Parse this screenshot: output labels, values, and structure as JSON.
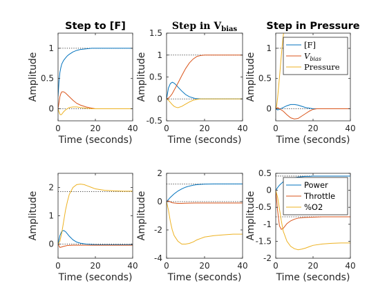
{
  "colors": {
    "F": "#0072BD",
    "Vbias": "#D95319",
    "Pressure": "#EDB120",
    "axis": "#262626",
    "ref": "#000000"
  },
  "chart_data": [
    {
      "type": "line",
      "row": 1,
      "col": 1,
      "title": "Step to [F]",
      "title_style": "sans",
      "xlabel": "Time (seconds)",
      "ylabel": "Amplitude",
      "xlim": [
        0,
        40
      ],
      "ylim": [
        -0.2,
        1.25
      ],
      "xticks": [
        "0",
        "20",
        "40"
      ],
      "xtick_values": [
        0,
        20,
        40
      ],
      "yticks": [
        "0",
        "0.5",
        "1"
      ],
      "ytick_values": [
        0,
        0.5,
        1
      ],
      "reference_lines": [
        0,
        1
      ],
      "series": [
        {
          "key": "F",
          "x": [
            0,
            0.5,
            1,
            1.5,
            2,
            3,
            4,
            5,
            6,
            8,
            10,
            12,
            15,
            18,
            20,
            25,
            30,
            35,
            40
          ],
          "y": [
            0.2,
            0.45,
            0.6,
            0.68,
            0.74,
            0.8,
            0.84,
            0.875,
            0.9,
            0.94,
            0.965,
            0.98,
            0.99,
            1.0,
            1.0,
            1.0,
            1.0,
            1.0,
            1.0
          ]
        },
        {
          "key": "Vbias",
          "x": [
            0,
            0.5,
            1,
            1.5,
            2,
            3,
            4,
            5,
            6,
            8,
            10,
            12,
            15,
            18,
            20,
            25,
            30,
            35,
            40
          ],
          "y": [
            0,
            0.1,
            0.2,
            0.25,
            0.28,
            0.28,
            0.26,
            0.23,
            0.2,
            0.14,
            0.09,
            0.06,
            0.03,
            0.01,
            0.0,
            0.0,
            0.0,
            0.0,
            0.0
          ]
        },
        {
          "key": "Pressure",
          "x": [
            0,
            0.5,
            1,
            1.5,
            2,
            3,
            4,
            5,
            6,
            8,
            10,
            12,
            15,
            18,
            20,
            25,
            30,
            35,
            40
          ],
          "y": [
            0,
            -0.05,
            -0.09,
            -0.1,
            -0.09,
            -0.05,
            -0.02,
            0.0,
            0.02,
            0.03,
            0.03,
            0.02,
            0.01,
            0.0,
            0.0,
            0.0,
            0.0,
            0.0,
            0.0
          ]
        }
      ]
    },
    {
      "type": "line",
      "row": 1,
      "col": 2,
      "title": "Step in V",
      "title_subscript": "bias",
      "title_style": "serif",
      "xlabel": "Time (seconds)",
      "ylabel": "Amplitude",
      "xlim": [
        0,
        40
      ],
      "ylim": [
        -0.5,
        1.5
      ],
      "xticks": [
        "0",
        "20",
        "40"
      ],
      "xtick_values": [
        0,
        20,
        40
      ],
      "yticks": [
        "-0.5",
        "0",
        "0.5",
        "1",
        "1.5"
      ],
      "ytick_values": [
        -0.5,
        0,
        0.5,
        1,
        1.5
      ],
      "reference_lines": [
        0,
        1
      ],
      "series": [
        {
          "key": "F",
          "x": [
            0,
            1,
            2,
            3,
            4,
            5,
            6,
            8,
            10,
            12,
            15,
            18,
            20,
            25,
            30,
            35,
            40
          ],
          "y": [
            0,
            0.25,
            0.35,
            0.38,
            0.36,
            0.32,
            0.27,
            0.18,
            0.1,
            0.05,
            0.01,
            0.0,
            0.0,
            0.0,
            0.0,
            0.0,
            0.0
          ]
        },
        {
          "key": "Vbias",
          "x": [
            0,
            1,
            2,
            3,
            4,
            5,
            6,
            8,
            10,
            12,
            14,
            16,
            18,
            20,
            22,
            25,
            30,
            35,
            40
          ],
          "y": [
            0,
            0.02,
            0.06,
            0.12,
            0.2,
            0.28,
            0.36,
            0.53,
            0.69,
            0.82,
            0.91,
            0.97,
            0.99,
            1.0,
            1.0,
            1.0,
            1.0,
            1.0,
            1.0
          ]
        },
        {
          "key": "Pressure",
          "x": [
            0,
            1,
            2,
            3,
            4,
            5,
            6,
            8,
            10,
            12,
            14,
            16,
            18,
            20,
            25,
            30,
            35,
            40
          ],
          "y": [
            0,
            -0.03,
            -0.08,
            -0.13,
            -0.17,
            -0.19,
            -0.2,
            -0.17,
            -0.12,
            -0.07,
            -0.03,
            -0.01,
            0.0,
            0.0,
            0.0,
            0.0,
            0.0,
            0.0
          ]
        }
      ]
    },
    {
      "type": "line",
      "row": 1,
      "col": 3,
      "title": "Step in Pressure",
      "title_style": "sans",
      "xlabel": "Time (seconds)",
      "ylabel": "Amplitude",
      "xlim": [
        0,
        40
      ],
      "ylim": [
        -0.2,
        1.25
      ],
      "xticks": [
        "0",
        "20",
        "40"
      ],
      "xtick_values": [
        0,
        20,
        40
      ],
      "yticks": [
        "0",
        "0.5",
        "1"
      ],
      "ytick_values": [
        0,
        0.5,
        1
      ],
      "reference_lines": [
        0,
        1
      ],
      "legend": {
        "position": "top-right",
        "entries": [
          {
            "key": "F",
            "label": "[F]",
            "style": "serif"
          },
          {
            "key": "Vbias",
            "label": "V",
            "subscript": "bias",
            "style": "serif"
          },
          {
            "key": "Pressure",
            "label": "Pressure",
            "style": "serif"
          }
        ]
      },
      "series": [
        {
          "key": "F",
          "x": [
            0,
            1,
            2,
            4,
            6,
            8,
            10,
            12,
            14,
            16,
            18,
            20,
            25,
            30,
            35,
            40
          ],
          "y": [
            0,
            -0.02,
            -0.01,
            0.02,
            0.05,
            0.07,
            0.07,
            0.06,
            0.04,
            0.02,
            0.01,
            0.0,
            0.0,
            0.0,
            0.0,
            0.0
          ]
        },
        {
          "key": "Vbias",
          "x": [
            0,
            1,
            2,
            4,
            6,
            8,
            10,
            12,
            14,
            16,
            18,
            20,
            22,
            25,
            30,
            35,
            40
          ],
          "y": [
            0,
            0.02,
            0.0,
            -0.04,
            -0.1,
            -0.15,
            -0.17,
            -0.16,
            -0.12,
            -0.08,
            -0.04,
            -0.01,
            0.0,
            0.0,
            0.0,
            0.0,
            0.0
          ]
        },
        {
          "key": "Pressure",
          "x": [
            0,
            0.5,
            1,
            1.5,
            2,
            2.5,
            3,
            3.5,
            4,
            4.2
          ],
          "y": [
            0,
            0.05,
            0.18,
            0.35,
            0.52,
            0.7,
            0.88,
            1.05,
            1.2,
            1.25
          ]
        }
      ]
    },
    {
      "type": "line",
      "row": 2,
      "col": 1,
      "title": "",
      "xlabel": "Time (seconds)",
      "ylabel": "Amplitude",
      "xlim": [
        0,
        40
      ],
      "ylim": [
        -0.5,
        2.5
      ],
      "xticks": [
        "0",
        "20",
        "40"
      ],
      "xtick_values": [
        0,
        20,
        40
      ],
      "yticks": [
        "0",
        "1",
        "2"
      ],
      "ytick_values": [
        0,
        1,
        2
      ],
      "reference_lines": [
        0,
        1.85
      ],
      "series": [
        {
          "key": "Power",
          "x": [
            0,
            1,
            2,
            3,
            4,
            5,
            6,
            8,
            10,
            12,
            15,
            20,
            25,
            30,
            35,
            40
          ],
          "y": [
            0,
            0.3,
            0.45,
            0.48,
            0.44,
            0.36,
            0.28,
            0.15,
            0.07,
            0.03,
            0.0,
            -0.02,
            -0.02,
            -0.02,
            -0.02,
            -0.02
          ]
        },
        {
          "key": "Throttle",
          "x": [
            0,
            1,
            2,
            3,
            5,
            8,
            10,
            15,
            20,
            30,
            40
          ],
          "y": [
            0,
            -0.12,
            -0.1,
            -0.08,
            -0.05,
            -0.04,
            -0.04,
            -0.04,
            -0.04,
            -0.04,
            -0.04
          ]
        },
        {
          "key": "O2",
          "x": [
            0,
            1,
            2,
            3,
            4,
            5,
            6,
            8,
            10,
            12,
            14,
            16,
            18,
            20,
            25,
            30,
            35,
            40
          ],
          "y": [
            0,
            0.1,
            0.4,
            0.8,
            1.2,
            1.5,
            1.75,
            2.0,
            2.1,
            2.12,
            2.1,
            2.05,
            2.0,
            1.95,
            1.9,
            1.88,
            1.87,
            1.87
          ]
        }
      ]
    },
    {
      "type": "line",
      "row": 2,
      "col": 2,
      "title": "",
      "xlabel": "Time (seconds)",
      "ylabel": "Amplitude",
      "xlim": [
        0,
        40
      ],
      "ylim": [
        -4,
        2
      ],
      "xticks": [
        "0",
        "20",
        "40"
      ],
      "xtick_values": [
        0,
        20,
        40
      ],
      "yticks": [
        "-4",
        "-2",
        "0",
        "2"
      ],
      "ytick_values": [
        -4,
        -2,
        0,
        2
      ],
      "reference_lines": [
        0,
        1.25
      ],
      "series": [
        {
          "key": "Power",
          "x": [
            0,
            1,
            2,
            4,
            6,
            8,
            10,
            12,
            14,
            16,
            18,
            20,
            25,
            30,
            35,
            40
          ],
          "y": [
            0,
            0.15,
            0.3,
            0.55,
            0.75,
            0.9,
            1.02,
            1.1,
            1.16,
            1.2,
            1.22,
            1.24,
            1.25,
            1.25,
            1.25,
            1.25
          ]
        },
        {
          "key": "Throttle",
          "x": [
            0,
            1,
            2,
            3,
            4,
            6,
            8,
            10,
            15,
            20,
            25,
            30,
            35,
            40
          ],
          "y": [
            0,
            0.05,
            -0.02,
            -0.08,
            -0.1,
            -0.12,
            -0.12,
            -0.11,
            -0.1,
            -0.1,
            -0.1,
            -0.1,
            -0.1,
            -0.1
          ]
        },
        {
          "key": "O2",
          "x": [
            0,
            1,
            2,
            3,
            4,
            6,
            8,
            10,
            12,
            14,
            16,
            18,
            20,
            25,
            30,
            35,
            40
          ],
          "y": [
            0,
            -0.6,
            -1.4,
            -2.0,
            -2.4,
            -2.8,
            -3.0,
            -3.0,
            -2.95,
            -2.85,
            -2.7,
            -2.6,
            -2.5,
            -2.4,
            -2.35,
            -2.3,
            -2.3
          ]
        }
      ]
    },
    {
      "type": "line",
      "row": 2,
      "col": 3,
      "title": "",
      "xlabel": "Time (seconds)",
      "ylabel": "Amplitude",
      "xlim": [
        0,
        40
      ],
      "ylim": [
        -2,
        0.5
      ],
      "xticks": [
        "0",
        "20",
        "40"
      ],
      "xtick_values": [
        0,
        20,
        40
      ],
      "yticks": [
        "-2",
        "-1.5",
        "-1",
        "-0.5",
        "0",
        "0.5"
      ],
      "ytick_values": [
        -2,
        -1.5,
        -1,
        -0.5,
        0,
        0.5
      ],
      "reference_lines": [
        0.42,
        -0.78
      ],
      "legend": {
        "position": "top-right",
        "entries": [
          {
            "key": "Power",
            "label": "Power",
            "style": "sans"
          },
          {
            "key": "Throttle",
            "label": "Throttle",
            "style": "sans"
          },
          {
            "key": "O2",
            "label": "%O2",
            "style": "sans"
          }
        ]
      },
      "series": [
        {
          "key": "Power",
          "x": [
            0,
            1,
            2,
            3,
            4,
            6,
            8,
            10,
            12,
            14,
            16,
            18,
            20,
            25,
            30,
            35,
            40
          ],
          "y": [
            0,
            0.08,
            0.15,
            0.2,
            0.25,
            0.3,
            0.34,
            0.37,
            0.39,
            0.4,
            0.41,
            0.41,
            0.42,
            0.42,
            0.42,
            0.42,
            0.42
          ]
        },
        {
          "key": "Throttle",
          "x": [
            0,
            1,
            2,
            3,
            4,
            5,
            6,
            8,
            10,
            12,
            15,
            20,
            25,
            30,
            35,
            40
          ],
          "y": [
            0,
            -0.6,
            -1.05,
            -1.15,
            -1.12,
            -1.05,
            -0.98,
            -0.9,
            -0.85,
            -0.82,
            -0.8,
            -0.79,
            -0.78,
            -0.78,
            -0.78,
            -0.78
          ]
        },
        {
          "key": "O2",
          "x": [
            0,
            1,
            2,
            3,
            4,
            6,
            8,
            10,
            12,
            14,
            16,
            18,
            20,
            25,
            30,
            35,
            40
          ],
          "y": [
            0,
            -0.2,
            -0.55,
            -0.9,
            -1.2,
            -1.5,
            -1.65,
            -1.72,
            -1.75,
            -1.73,
            -1.7,
            -1.66,
            -1.62,
            -1.58,
            -1.56,
            -1.55,
            -1.55
          ]
        }
      ]
    }
  ],
  "series_colors": {
    "F": "#0072BD",
    "Vbias": "#D95319",
    "Pressure": "#EDB120",
    "Power": "#0072BD",
    "Throttle": "#D95319",
    "O2": "#EDB120"
  }
}
